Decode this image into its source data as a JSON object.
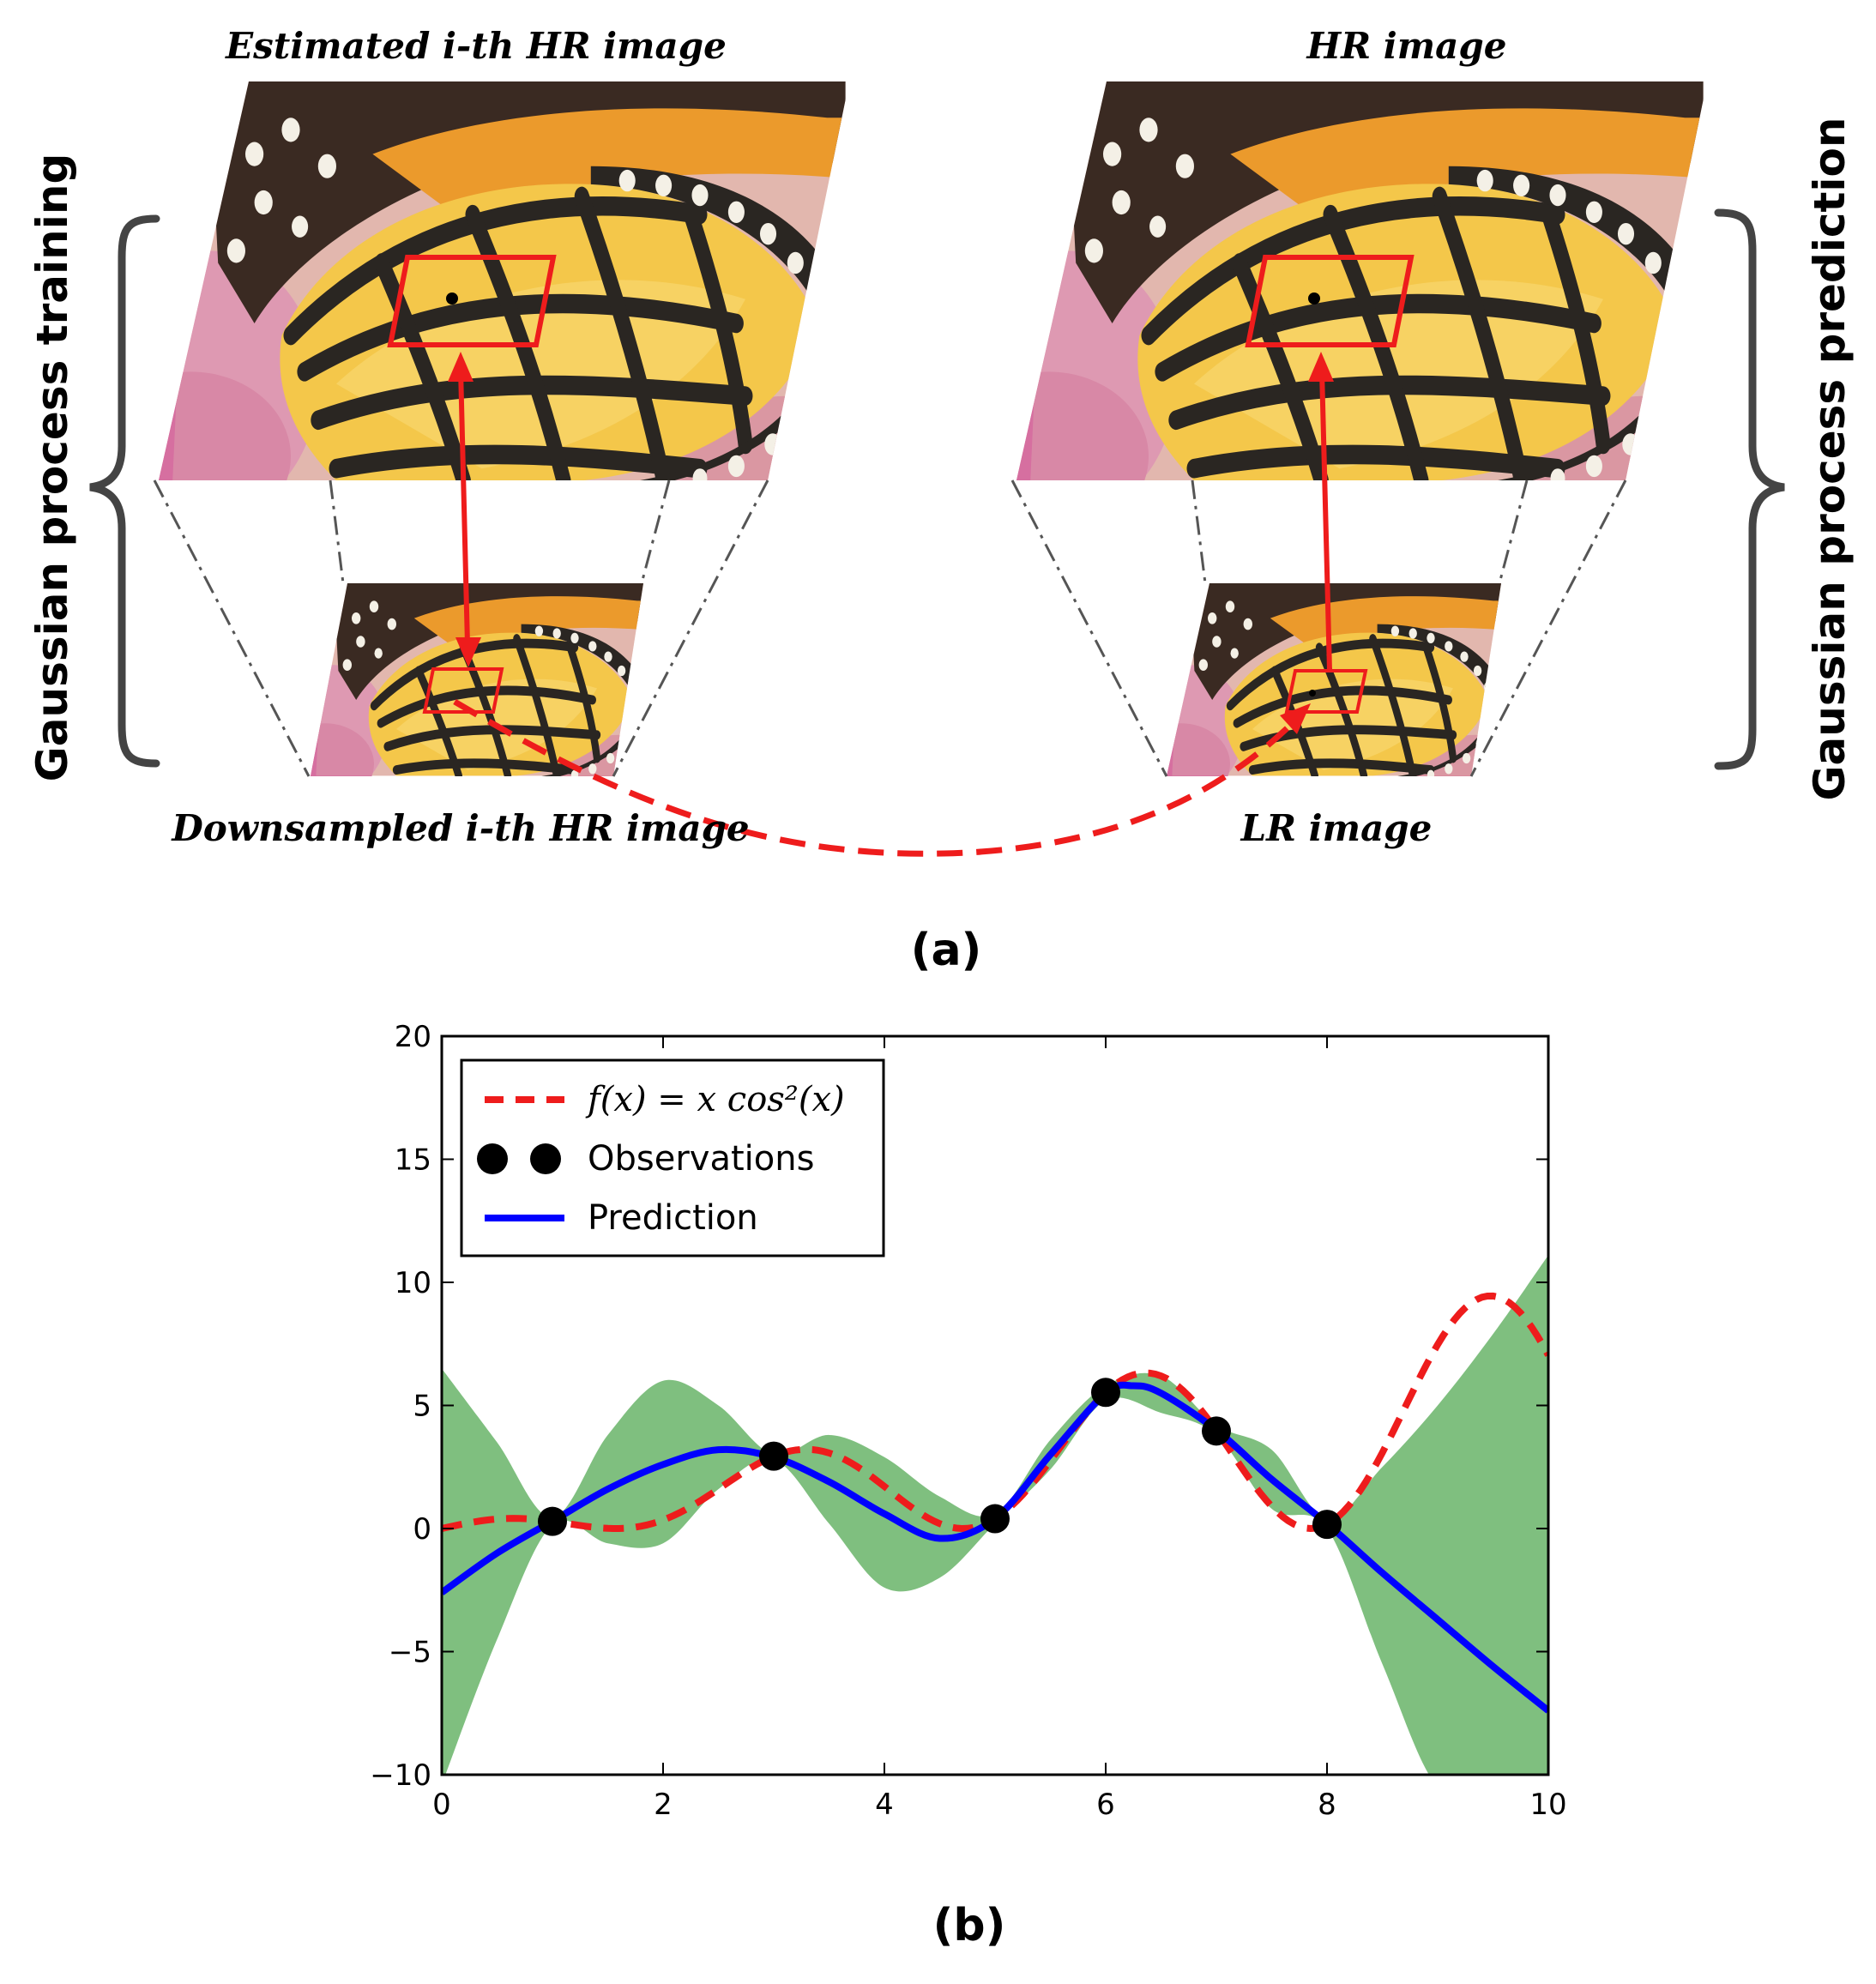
{
  "panel_a": {
    "label": "(a)",
    "side_left": "Gaussian process training",
    "side_right": "Gaussian process prediction",
    "titles": {
      "est_hr": "Estimated i-th HR image",
      "hr": "HR image",
      "down_hr": "Downsampled i-th HR image",
      "lr": "LR image"
    },
    "colors": {
      "wing_yellow": "#f3c84a",
      "wing_orange": "#e8982a",
      "vein": "#2a2622",
      "flower": "#d98ab0",
      "arrow": "#ee1c1c",
      "brace": "#444444"
    }
  },
  "panel_b": {
    "label": "(b)"
  },
  "chart_data": {
    "type": "line",
    "title": "",
    "xlabel": "",
    "ylabel": "",
    "xlim": [
      0,
      10
    ],
    "ylim": [
      -10,
      20
    ],
    "xticks": [
      "0",
      "2",
      "4",
      "6",
      "8",
      "10"
    ],
    "yticks": [
      "−10",
      "−5",
      "0",
      "5",
      "10",
      "15",
      "20"
    ],
    "legend_position": "top-left",
    "legend": {
      "true_fn": "f(x) = x cos²(x)",
      "obs": "Observations",
      "pred": "Prediction"
    },
    "observations": {
      "x": [
        1,
        3,
        5,
        6,
        7,
        8
      ],
      "y": [
        0.29,
        2.94,
        0.4,
        5.53,
        3.96,
        0.17
      ]
    },
    "prediction": {
      "x": [
        0,
        0.5,
        1,
        1.5,
        2,
        2.5,
        3,
        3.5,
        4,
        4.5,
        5,
        5.5,
        6,
        6.25,
        6.5,
        7,
        7.5,
        8,
        8.5,
        9,
        9.5,
        10
      ],
      "y": [
        -2.6,
        -1.0,
        0.3,
        1.6,
        2.6,
        3.2,
        2.9,
        1.9,
        0.6,
        -0.4,
        0.4,
        3.0,
        5.5,
        5.8,
        5.5,
        4.0,
        2.0,
        0.2,
        -1.8,
        -3.7,
        -5.6,
        -7.4
      ]
    },
    "confidence_band": {
      "x": [
        0,
        0.5,
        1,
        1.5,
        2,
        2.5,
        3,
        3.5,
        4,
        4.5,
        5,
        5.5,
        6,
        6.5,
        7,
        7.5,
        8,
        8.5,
        9,
        9.5,
        10
      ],
      "upper": [
        6.5,
        3.5,
        0.45,
        3.8,
        6.0,
        5.0,
        3.0,
        3.8,
        2.9,
        1.3,
        0.6,
        3.6,
        5.8,
        6.2,
        4.2,
        3.2,
        0.4,
        2.5,
        5.0,
        7.9,
        11.1
      ],
      "lower": [
        -10.4,
        -4.5,
        0.15,
        -0.6,
        -0.6,
        1.6,
        2.8,
        0.2,
        -2.4,
        -2.0,
        0.2,
        2.4,
        5.2,
        4.7,
        3.8,
        0.8,
        0.0,
        -5.5,
        -10.5,
        -10.5,
        -10.5
      ]
    },
    "colors": {
      "true_fn": "#ee1c1c",
      "prediction": "#0000ff",
      "band": "#7fbf7f",
      "obs": "#000000"
    }
  }
}
